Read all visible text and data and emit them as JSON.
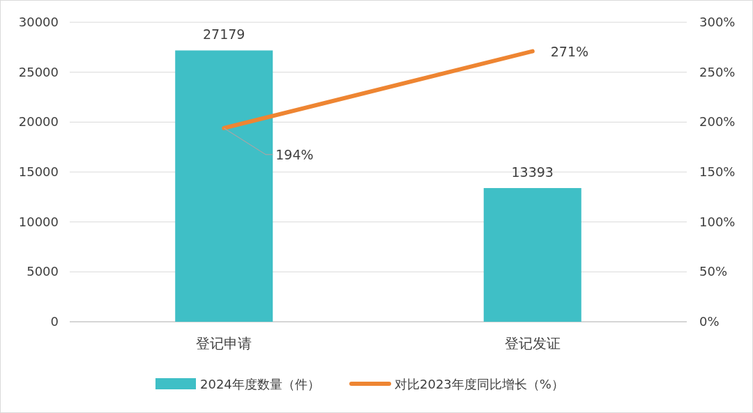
{
  "chart_data": {
    "type": "bar",
    "categories": [
      "登记申请",
      "登记发证"
    ],
    "series": [
      {
        "name": "2024年度数量（件）",
        "color": "#3fbfc6",
        "values": [
          27179,
          13393
        ],
        "value_labels": [
          "27179",
          "13393"
        ]
      },
      {
        "name": "对比2023年度同比增长（%）",
        "type": "line",
        "axis": "y2",
        "color": "#ee8532",
        "values": [
          194,
          271
        ],
        "value_labels": [
          "194%",
          "271%"
        ]
      }
    ],
    "ylim": [
      0,
      30000
    ],
    "yticks": [
      0,
      5000,
      10000,
      15000,
      20000,
      25000,
      30000
    ],
    "y2lim": [
      0,
      300
    ],
    "y2ticks": [
      {
        "value": 0,
        "label": "0%"
      },
      {
        "value": 50,
        "label": "50%"
      },
      {
        "value": 100,
        "label": "100%"
      },
      {
        "value": 150,
        "label": "150%"
      },
      {
        "value": 200,
        "label": "200%"
      },
      {
        "value": 250,
        "label": "250%"
      },
      {
        "value": 300,
        "label": "300%"
      }
    ],
    "grid": "y",
    "legend": "bottom",
    "marker": "none",
    "line_style": "solid"
  }
}
